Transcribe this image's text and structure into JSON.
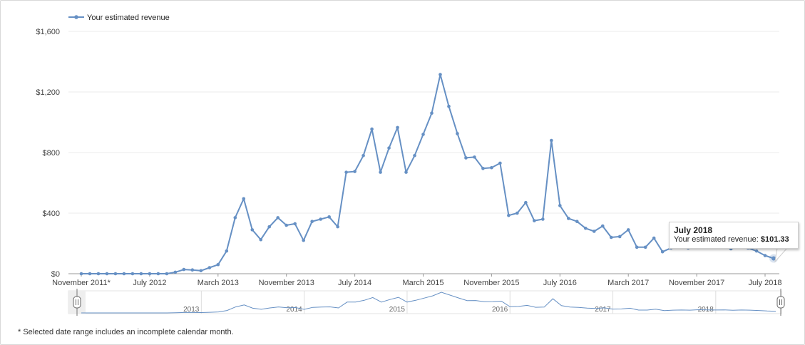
{
  "legend": {
    "label": "Your estimated revenue",
    "color": "#6690c4"
  },
  "footnote": "* Selected date range includes an incomplete calendar month.",
  "tooltip": {
    "title": "July 2018",
    "label": "Your estimated revenue:",
    "value": "$101.33"
  },
  "navigator": {
    "years": [
      "2013",
      "2014",
      "2015",
      "2016",
      "2017",
      "2018"
    ]
  },
  "chart_data": {
    "type": "line",
    "legend_position": "top-left",
    "grid": true,
    "x_tick_labels": [
      "November 2011*",
      "July 2012",
      "March 2013",
      "November 2013",
      "July 2014",
      "March 2015",
      "November 2015",
      "July 2016",
      "March 2017",
      "November 2017",
      "July 2018"
    ],
    "y_tick_labels": [
      "$0",
      "$400",
      "$800",
      "$1,200",
      "$1,600"
    ],
    "ylim": [
      0,
      1600
    ],
    "series": [
      {
        "name": "Your estimated revenue",
        "color": "#6690c4",
        "start_month": "November 2011",
        "end_month": "July 2018",
        "values": [
          0,
          0,
          0,
          0,
          0,
          0,
          0,
          0,
          0,
          0,
          0,
          10,
          28,
          25,
          20,
          40,
          60,
          150,
          370,
          495,
          290,
          225,
          310,
          370,
          320,
          330,
          220,
          345,
          360,
          375,
          310,
          670,
          675,
          780,
          955,
          670,
          830,
          965,
          670,
          780,
          920,
          1060,
          1315,
          1105,
          925,
          765,
          770,
          695,
          700,
          730,
          385,
          400,
          470,
          350,
          360,
          880,
          450,
          365,
          345,
          300,
          280,
          315,
          240,
          245,
          290,
          175,
          175,
          235,
          145,
          170,
          180,
          170,
          200,
          190,
          180,
          185,
          165,
          180,
          170,
          150,
          120,
          101.33
        ]
      }
    ]
  }
}
